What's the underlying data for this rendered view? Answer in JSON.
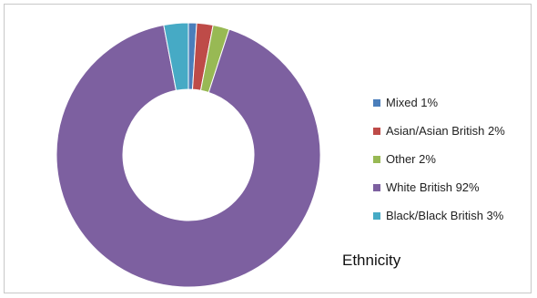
{
  "chart_data": {
    "type": "pie",
    "donut": true,
    "title": "Ethnicity",
    "legend_position": "right",
    "categories": [
      "Mixed",
      "Asian/Asian British",
      "Other",
      "White British",
      "Black/Black British"
    ],
    "values": [
      1,
      2,
      2,
      92,
      3
    ],
    "legend_labels": [
      "Mixed 1%",
      "Asian/Asian British 2%",
      "Other 2%",
      "White British 92%",
      "Black/Black British 3%"
    ],
    "colors": [
      "#4a7ebb",
      "#be4b48",
      "#98b954",
      "#7d60a0",
      "#46aac5"
    ]
  }
}
